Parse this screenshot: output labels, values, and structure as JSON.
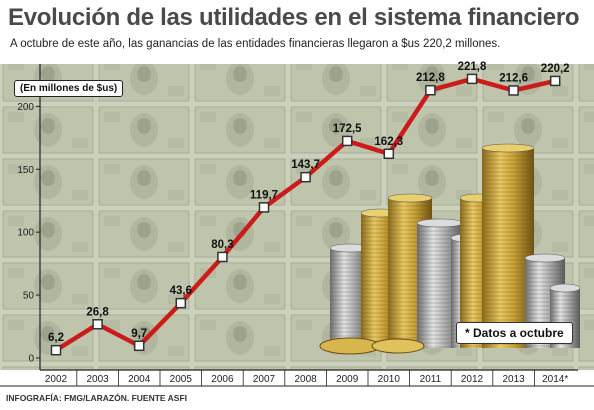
{
  "header": {
    "title": "Evolución de las utilidades en el sistema financiero",
    "subtitle": "A octubre de este año, las ganancias de las entidades financieras llegaron a $us 220,2 millones."
  },
  "unit_label": "(En millones de $us)",
  "footnote": "* Datos a octubre",
  "credit": "INFOGRAFÍA: FMG/LARAZÓN. FUENTE ASFI",
  "colors": {
    "line": "#cc1b1b",
    "marker_fill": "#ffffff",
    "marker_stroke": "#333333",
    "title": "#4a4a4a",
    "background_money": "#b9bfa7",
    "coin_gold": "#c9a23a",
    "coin_silver": "#a8a8a8"
  },
  "chart_data": {
    "type": "line",
    "categories": [
      "2002",
      "2003",
      "2004",
      "2005",
      "2006",
      "2007",
      "2008",
      "2009",
      "2010",
      "2011",
      "2012",
      "2013",
      "2014*"
    ],
    "values": [
      6.2,
      26.8,
      9.7,
      43.6,
      80.3,
      119.7,
      143.7,
      172.5,
      162.3,
      212.8,
      221.8,
      212.6,
      220.2
    ],
    "value_labels": [
      "6,2",
      "26,8",
      "9,7",
      "43,6",
      "80,3",
      "119,7",
      "143,7",
      "172,5",
      "162,3",
      "212,8",
      "221,8",
      "212,6",
      "220,2"
    ],
    "yticks": [
      0,
      50,
      100,
      150,
      200
    ],
    "ylim": [
      0,
      240
    ],
    "grid": false,
    "title": "Evolución de las utilidades en el sistema financiero",
    "xlabel": "",
    "ylabel": "(En millones de $us)"
  }
}
